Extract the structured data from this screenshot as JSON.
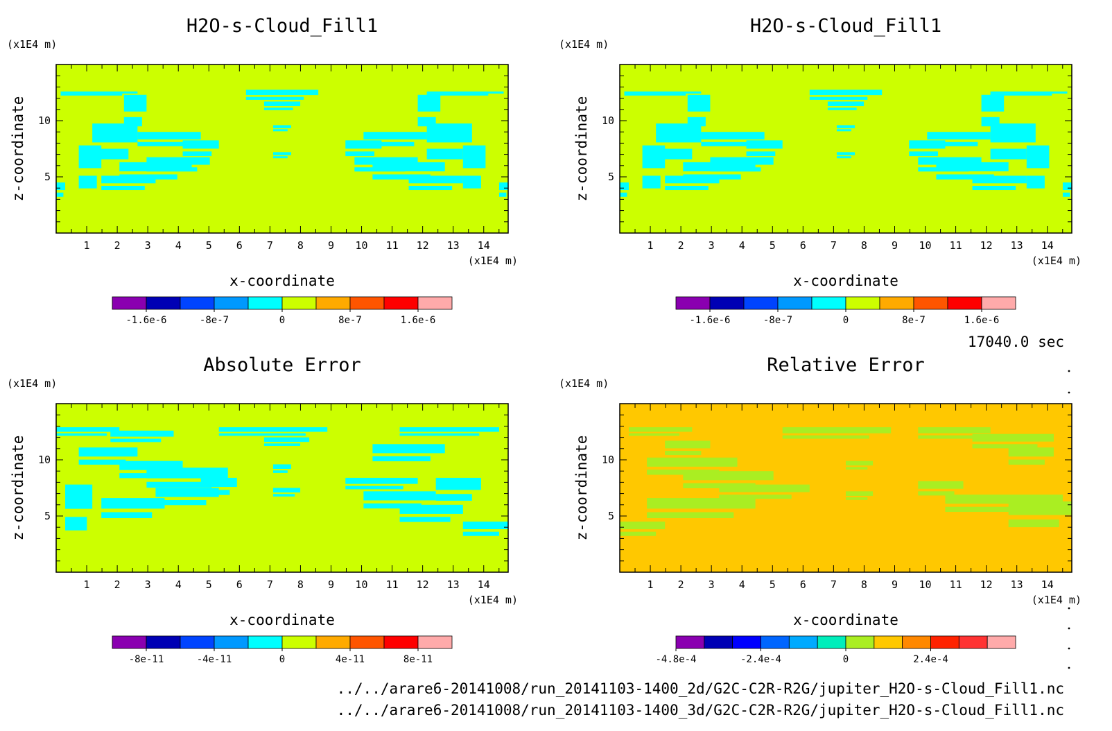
{
  "time_label": "17040.0 sec",
  "footer": {
    "lines": [
      "../../arare6-20141008/run_20141103-1400_2d/G2C-C2R-R2G/jupiter_H2O-s-Cloud_Fill1.nc",
      "../../arare6-20141008/run_20141103-1400_3d/G2C-C2R-R2G/jupiter_H2O-s-Cloud_Fill1.nc"
    ]
  },
  "chart_data": [
    {
      "type": "heatmap",
      "title": "H2O-s-Cloud_Fill1",
      "xlabel": "x-coordinate",
      "ylabel": "z-coordinate",
      "x_unit": "(x1E4 m)",
      "y_unit": "(x1E4 m)",
      "xlim": [
        0,
        14.8
      ],
      "ylim": [
        0,
        15
      ],
      "x_ticks": [
        1,
        2,
        3,
        4,
        5,
        6,
        7,
        8,
        9,
        10,
        11,
        12,
        13,
        14
      ],
      "y_ticks": [
        5,
        10
      ],
      "background_color": "#ccff00",
      "feature_color": "#00ffff",
      "pattern": "symmetric-cloud",
      "colorbar": {
        "colors": [
          "#8a00b0",
          "#0000b4",
          "#0044ff",
          "#0099ff",
          "#00ffff",
          "#ccff00",
          "#ffaa00",
          "#ff5500",
          "#ff0000",
          "#ffaaaa"
        ],
        "tick_labels": [
          "-1.6e-6",
          "-8e-7",
          "0",
          "8e-7",
          "1.6e-6"
        ],
        "tick_values": [
          -1.6e-06,
          -8e-07,
          0,
          8e-07,
          1.6e-06
        ],
        "range": [
          -2e-06,
          2e-06
        ]
      }
    },
    {
      "type": "heatmap",
      "title": "H2O-s-Cloud_Fill1",
      "xlabel": "x-coordinate",
      "ylabel": "z-coordinate",
      "x_unit": "(x1E4 m)",
      "y_unit": "(x1E4 m)",
      "xlim": [
        0,
        14.8
      ],
      "ylim": [
        0,
        15
      ],
      "x_ticks": [
        1,
        2,
        3,
        4,
        5,
        6,
        7,
        8,
        9,
        10,
        11,
        12,
        13,
        14
      ],
      "y_ticks": [
        5,
        10
      ],
      "background_color": "#ccff00",
      "feature_color": "#00ffff",
      "pattern": "symmetric-cloud",
      "colorbar": {
        "colors": [
          "#8a00b0",
          "#0000b4",
          "#0044ff",
          "#0099ff",
          "#00ffff",
          "#ccff00",
          "#ffaa00",
          "#ff5500",
          "#ff0000",
          "#ffaaaa"
        ],
        "tick_labels": [
          "-1.6e-6",
          "-8e-7",
          "0",
          "8e-7",
          "1.6e-6"
        ],
        "tick_values": [
          -1.6e-06,
          -8e-07,
          0,
          8e-07,
          1.6e-06
        ],
        "range": [
          -2e-06,
          2e-06
        ]
      }
    },
    {
      "type": "heatmap",
      "title": "Absolute Error",
      "xlabel": "x-coordinate",
      "ylabel": "z-coordinate",
      "x_unit": "(x1E4 m)",
      "y_unit": "(x1E4 m)",
      "xlim": [
        0,
        14.8
      ],
      "ylim": [
        0,
        15
      ],
      "x_ticks": [
        1,
        2,
        3,
        4,
        5,
        6,
        7,
        8,
        9,
        10,
        11,
        12,
        13,
        14
      ],
      "y_ticks": [
        5,
        10
      ],
      "background_color": "#ccff00",
      "feature_color": "#00ffff",
      "pattern": "noisy-cloud",
      "colorbar": {
        "colors": [
          "#8a00b0",
          "#0000b4",
          "#0044ff",
          "#0099ff",
          "#00ffff",
          "#ccff00",
          "#ffaa00",
          "#ff5500",
          "#ff0000",
          "#ffaaaa"
        ],
        "tick_labels": [
          "-8e-11",
          "-4e-11",
          "0",
          "4e-11",
          "8e-11"
        ],
        "tick_values": [
          -8e-11,
          -4e-11,
          0,
          4e-11,
          8e-11
        ],
        "range": [
          -1e-10,
          1e-10
        ]
      }
    },
    {
      "type": "heatmap",
      "title": "Relative Error",
      "xlabel": "x-coordinate",
      "ylabel": "z-coordinate",
      "x_unit": "(x1E4 m)",
      "y_unit": "(x1E4 m)",
      "xlim": [
        0,
        14.8
      ],
      "ylim": [
        0,
        15
      ],
      "x_ticks": [
        1,
        2,
        3,
        4,
        5,
        6,
        7,
        8,
        9,
        10,
        11,
        12,
        13,
        14
      ],
      "y_ticks": [
        5,
        10
      ],
      "background_color": "#ffc800",
      "feature_color": "#aaee22",
      "pattern": "relative-cloud",
      "colorbar": {
        "colors": [
          "#8a00b0",
          "#0000b4",
          "#0000ff",
          "#0066ff",
          "#00aaff",
          "#00eebb",
          "#aaee22",
          "#ffc800",
          "#ff8800",
          "#ff2200",
          "#ff3333",
          "#ffaaaa"
        ],
        "tick_labels": [
          "-4.8e-4",
          "-2.4e-4",
          "0",
          "2.4e-4"
        ],
        "tick_values": [
          -0.00048,
          -0.00024,
          0,
          0.00024
        ],
        "range": [
          -0.00048,
          0.00048
        ]
      }
    }
  ]
}
